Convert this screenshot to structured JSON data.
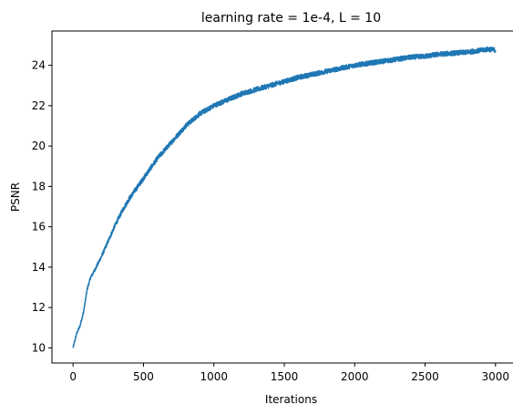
{
  "chart_data": {
    "type": "line",
    "title": "learning rate = 1e-4, L = 10",
    "xlabel": "Iterations",
    "ylabel": "PSNR",
    "xlim": [
      -150,
      3150
    ],
    "ylim": [
      9.25,
      25.7
    ],
    "xticks": [
      0,
      500,
      1000,
      1500,
      2000,
      2500,
      3000
    ],
    "yticks": [
      10,
      12,
      14,
      16,
      18,
      20,
      22,
      24
    ],
    "grid": false,
    "legend": "none",
    "series": [
      {
        "color": "#1f77b4",
        "noise_amplitude": 0.12,
        "x": [
          0,
          25,
          50,
          75,
          100,
          125,
          150,
          200,
          250,
          300,
          350,
          400,
          450,
          500,
          550,
          600,
          650,
          700,
          750,
          800,
          850,
          900,
          950,
          1000,
          1050,
          1100,
          1150,
          1200,
          1250,
          1300,
          1350,
          1400,
          1450,
          1500,
          1600,
          1700,
          1800,
          1900,
          2000,
          2100,
          2200,
          2300,
          2400,
          2500,
          2600,
          2700,
          2800,
          2900,
          2950,
          3000
        ],
        "y": [
          10.0,
          10.7,
          11.1,
          11.8,
          12.9,
          13.5,
          13.8,
          14.5,
          15.3,
          16.1,
          16.8,
          17.4,
          17.9,
          18.4,
          18.9,
          19.4,
          19.8,
          20.2,
          20.6,
          21.0,
          21.3,
          21.6,
          21.8,
          22.0,
          22.15,
          22.3,
          22.45,
          22.6,
          22.7,
          22.8,
          22.9,
          23.0,
          23.1,
          23.2,
          23.4,
          23.55,
          23.7,
          23.85,
          24.0,
          24.1,
          24.2,
          24.3,
          24.4,
          24.45,
          24.55,
          24.6,
          24.65,
          24.75,
          24.8,
          24.75
        ]
      }
    ]
  }
}
